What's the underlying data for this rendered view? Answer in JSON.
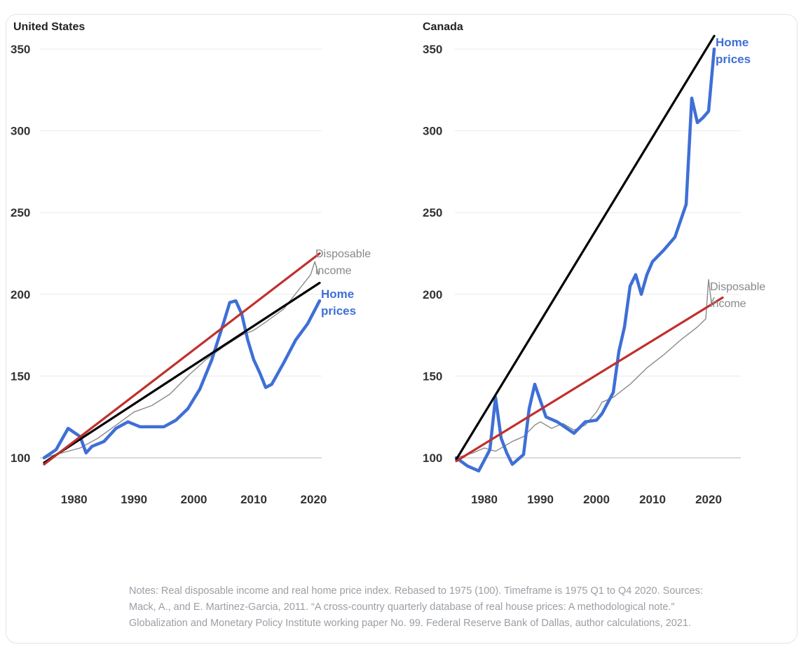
{
  "chart_data": [
    {
      "type": "line",
      "title": "United States",
      "xlabel": "",
      "ylabel": "",
      "xlim": [
        1975,
        2021
      ],
      "ylim": [
        100,
        350
      ],
      "x_ticks": [
        1980,
        1990,
        2000,
        2010,
        2020
      ],
      "y_ticks": [
        100,
        150,
        200,
        250,
        300,
        350
      ],
      "series": [
        {
          "name": "Disposable income",
          "color": "#8a8a8a",
          "x": [
            1975,
            1978,
            1981,
            1984,
            1987,
            1990,
            1993,
            1996,
            1999,
            2002,
            2005,
            2008,
            2010,
            2012,
            2015,
            2018,
            2019.5,
            2020.2,
            2020.8,
            2021
          ],
          "y": [
            100,
            103,
            106,
            112,
            120,
            128,
            132,
            139,
            150,
            160,
            168,
            175,
            178,
            183,
            191,
            205,
            212,
            220,
            212,
            214
          ]
        },
        {
          "name": "Home prices",
          "color": "#3f6fd6",
          "x": [
            1975,
            1977,
            1979,
            1981,
            1982,
            1983,
            1985,
            1987,
            1989,
            1991,
            1993,
            1995,
            1997,
            1999,
            2001,
            2003,
            2005,
            2006,
            2007,
            2008,
            2009,
            2010,
            2011,
            2012,
            2013,
            2015,
            2017,
            2019,
            2021
          ],
          "y": [
            100,
            105,
            118,
            113,
            103,
            107,
            110,
            118,
            122,
            119,
            119,
            119,
            123,
            130,
            142,
            160,
            183,
            195,
            196,
            188,
            172,
            160,
            152,
            143,
            145,
            158,
            172,
            182,
            196
          ]
        },
        {
          "name": "Home prices trend",
          "color": "#000000",
          "x": [
            1975,
            2021
          ],
          "y": [
            97,
            207
          ]
        },
        {
          "name": "Disposable income trend",
          "color": "#c0302e",
          "x": [
            1975,
            2021
          ],
          "y": [
            96,
            225
          ]
        }
      ],
      "annotations": [
        {
          "text_lines": [
            "Disposable",
            "income"
          ],
          "color": "#888888",
          "x": 2021,
          "y": 220
        },
        {
          "text_lines": [
            "Home",
            "prices"
          ],
          "color": "#3f6fd6",
          "x": 2021,
          "y": 196
        }
      ]
    },
    {
      "type": "line",
      "title": "Canada",
      "xlabel": "",
      "ylabel": "",
      "xlim": [
        1975,
        2021
      ],
      "ylim": [
        100,
        350
      ],
      "x_ticks": [
        1980,
        1990,
        2000,
        2010,
        2020
      ],
      "y_ticks": [
        100,
        150,
        200,
        250,
        300,
        350
      ],
      "series": [
        {
          "name": "Disposable income",
          "color": "#8a8a8a",
          "x": [
            1975,
            1978,
            1980,
            1982,
            1985,
            1987,
            1989,
            1990,
            1992,
            1994,
            1996,
            1998,
            2000,
            2001,
            2003,
            2006,
            2009,
            2012,
            2015,
            2018,
            2019.5,
            2020,
            2020.5,
            2021
          ],
          "y": [
            100,
            103,
            106,
            104,
            110,
            113,
            120,
            122,
            118,
            121,
            117,
            120,
            128,
            134,
            137,
            145,
            155,
            163,
            172,
            180,
            185,
            209,
            195,
            198
          ]
        },
        {
          "name": "Home prices",
          "color": "#3f6fd6",
          "x": [
            1975,
            1977,
            1979,
            1981,
            1982,
            1983,
            1984,
            1985,
            1987,
            1988,
            1989,
            1990,
            1991,
            1993,
            1996,
            1998,
            2000,
            2001,
            2003,
            2004,
            2005,
            2006,
            2007,
            2008,
            2009,
            2010,
            2012,
            2014,
            2016,
            2017,
            2018,
            2019,
            2020,
            2021
          ],
          "y": [
            100,
            95,
            92,
            105,
            137,
            112,
            103,
            96,
            102,
            130,
            145,
            135,
            125,
            122,
            115,
            122,
            123,
            127,
            140,
            165,
            180,
            205,
            212,
            200,
            212,
            220,
            227,
            235,
            255,
            320,
            305,
            308,
            312,
            350
          ]
        },
        {
          "name": "Home prices trend",
          "color": "#000000",
          "x": [
            1975,
            2021
          ],
          "y": [
            99,
            358
          ]
        },
        {
          "name": "Disposable income trend",
          "color": "#c0302e",
          "x": [
            1975,
            2022.5
          ],
          "y": [
            98,
            198
          ]
        }
      ],
      "annotations": [
        {
          "text_lines": [
            "Home",
            "prices"
          ],
          "color": "#3f6fd6",
          "x": 2021,
          "y": 350
        },
        {
          "text_lines": [
            "Disposable",
            "income"
          ],
          "color": "#888888",
          "x": 2021,
          "y": 200
        }
      ]
    }
  ],
  "notes": "Notes: Real disposable income and real home price index. Rebased to 1975 (100). Timeframe is 1975 Q1 to Q4 2020. Sources: Mack, A., and E. Martinez-Garcia, 2011. “A cross-country quarterly database of real house prices: A methodological note.” Globalization and Monetary Policy Institute working paper No. 99. Federal Reserve Bank of Dallas, author calculations, 2021."
}
